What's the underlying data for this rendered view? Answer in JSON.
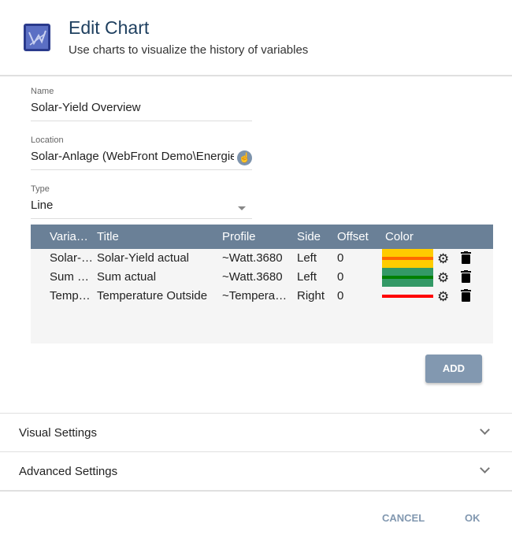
{
  "header": {
    "title": "Edit Chart",
    "subtitle": "Use charts to visualize the history of variables",
    "logo_icon": "chart-logo-icon"
  },
  "form": {
    "name": {
      "label": "Name",
      "value": "Solar-Yield Overview"
    },
    "location": {
      "label": "Location",
      "value": "Solar-Anlage (WebFront Demo\\Energie)"
    },
    "type": {
      "label": "Type",
      "value": "Line"
    }
  },
  "table": {
    "headers": [
      "Varia…",
      "Title",
      "Profile",
      "Side",
      "Offset",
      "Color"
    ],
    "rows": [
      {
        "variable": "Solar-…",
        "title": "Solar-Yield actual",
        "profile": "~Watt.3680",
        "side": "Left",
        "offset": "0",
        "fill": "#ffcc00",
        "line": "#ff6a00"
      },
      {
        "variable": "Sum …",
        "title": "Sum actual",
        "profile": "~Watt.3680",
        "side": "Left",
        "offset": "0",
        "fill": "#339966",
        "line": "#008000"
      },
      {
        "variable": "Temp…",
        "title": "Temperature Outside",
        "profile": "~Tempera…",
        "side": "Right",
        "offset": "0",
        "fill": "",
        "line": "#ff0000"
      }
    ],
    "add_label": "ADD"
  },
  "sections": {
    "visual": "Visual Settings",
    "advanced": "Advanced Settings"
  },
  "footer": {
    "cancel": "CANCEL",
    "ok": "OK"
  }
}
